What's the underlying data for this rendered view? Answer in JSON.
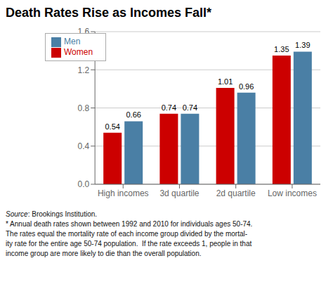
{
  "chart_data": {
    "type": "bar",
    "title": "Death Rates Rise as Incomes Fall*",
    "categories": [
      "High incomes",
      "3d quartile",
      "2d quartile",
      "Low incomes"
    ],
    "series": [
      {
        "name": "Women",
        "color": "#cc0000",
        "values": [
          0.54,
          0.74,
          1.01,
          1.35
        ]
      },
      {
        "name": "Men",
        "color": "#4a7fa5",
        "values": [
          0.66,
          0.74,
          0.96,
          1.39
        ]
      }
    ],
    "ylim": [
      0,
      1.6
    ],
    "yticks": [
      {
        "value": 0,
        "label": "0.0"
      },
      0.4,
      0.8,
      1.2,
      1.6
    ],
    "grid": true,
    "legend": "upper left",
    "data_labels": true,
    "annotations": [
      "Source: Brookings Institution.",
      "* Annual death rates shown between 1992 and 2010 for individuals ages 50-74.",
      "The rates equal the mortality rate of each income group divided by the mortal-",
      "ity rate for the entire age 50-74 population.  If the rate exceeds 1, people in that",
      "income group are more likely to die than the overall population."
    ]
  }
}
